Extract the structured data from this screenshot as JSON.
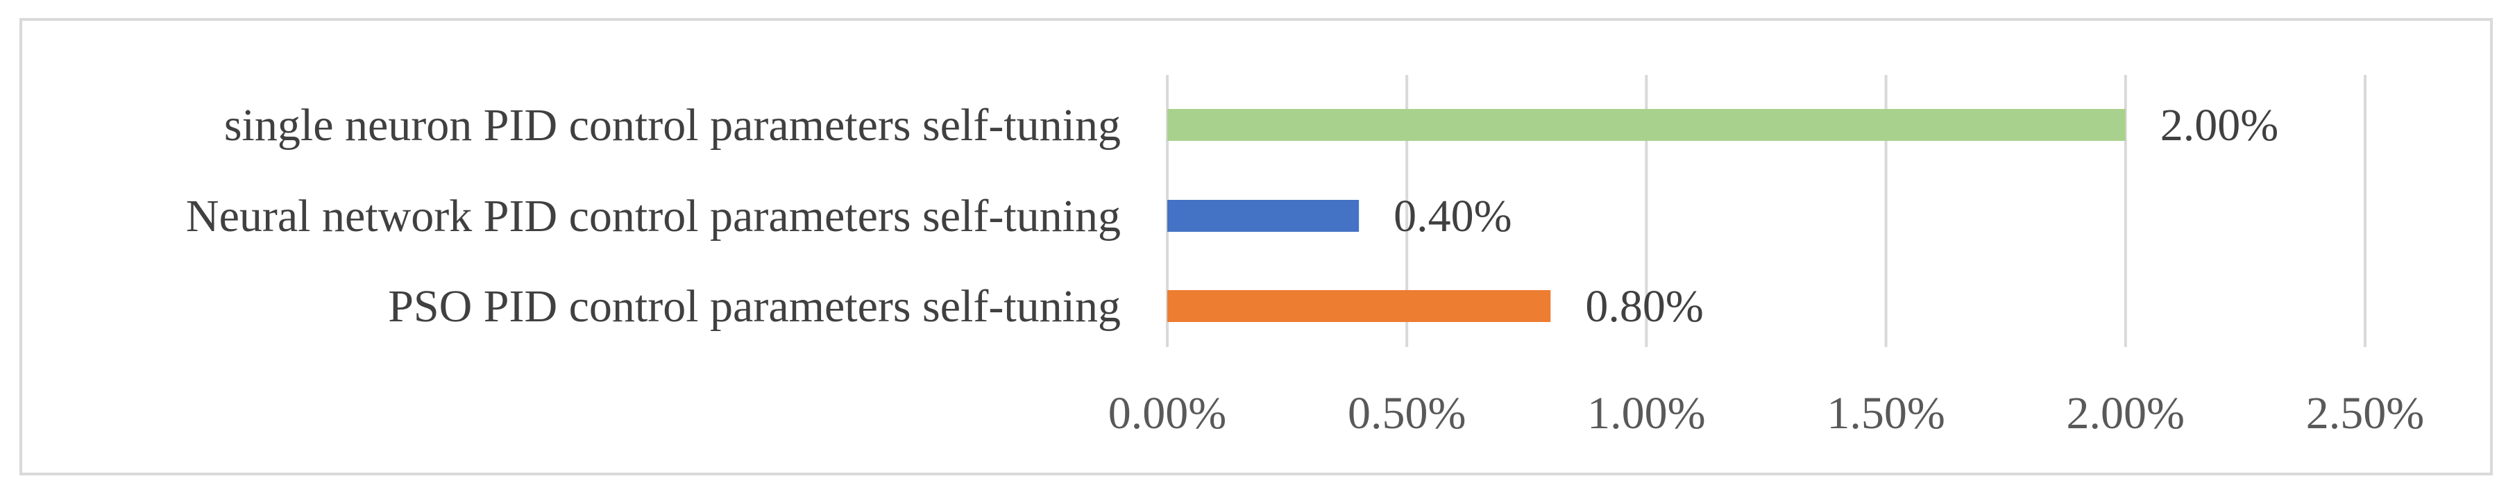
{
  "chart_data": {
    "type": "bar",
    "orientation": "horizontal",
    "categories": [
      "single neuron PID control parameters self-tuning",
      "Neural network PID control parameters self-tuning",
      "PSO PID control parameters self-tuning"
    ],
    "values": [
      2.0,
      0.4,
      0.8
    ],
    "data_labels": [
      "2.00%",
      "0.40%",
      "0.80%"
    ],
    "colors": [
      "#a9d18e",
      "#4472c4",
      "#ed7d31"
    ],
    "xlim": [
      0,
      2.5
    ],
    "x_ticks": [
      0,
      0.5,
      1.0,
      1.5,
      2.0,
      2.5
    ],
    "x_tick_labels": [
      "0.00%",
      "0.50%",
      "1.00%",
      "1.50%",
      "2.00%",
      "2.50%"
    ],
    "grid": true,
    "legend": "none"
  }
}
